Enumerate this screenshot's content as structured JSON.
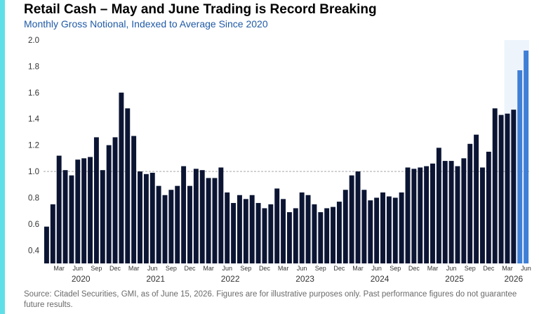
{
  "title": "Retail Cash – May and June Trading is Record Breaking",
  "subtitle": "Monthly Gross Notional, Indexed to Average Since 2020",
  "footnote": "Source: Citadel Securities, GMI, as of June 15, 2026. Figures are for illustrative purposes only. Past performance figures do not guarantee future results.",
  "colors": {
    "accent": "#5fe0e8",
    "subtitle": "#1f5aa6",
    "bar": "#0b1533",
    "bar_highlight": "#3f7fd6",
    "highlight_band": "#eef4fc",
    "reference_line": "#9a9a9a",
    "axis_text": "#333333"
  },
  "chart_data": {
    "type": "bar",
    "title": "Retail Cash – May and June Trading is Record Breaking",
    "subtitle": "Monthly Gross Notional, Indexed to Average Since 2020",
    "xlabel": "",
    "ylabel": "",
    "ylim": [
      0.3,
      2.0
    ],
    "yticks": [
      "0.4",
      "0.6",
      "0.8",
      "1.0",
      "1.2",
      "1.4",
      "1.6",
      "1.8",
      "2.0"
    ],
    "reference_line": 1.0,
    "grid": false,
    "legend": "none",
    "highlighted_period": [
      "2026-05",
      "2026-06"
    ],
    "month_tick_labels": [
      "Mar",
      "Jun",
      "Sep",
      "Dec"
    ],
    "year_labels": [
      "2020",
      "2021",
      "2022",
      "2023",
      "2024",
      "2025",
      "2026"
    ],
    "start_month": "2020-01",
    "values": [
      0.58,
      0.75,
      1.12,
      1.01,
      0.97,
      1.09,
      1.1,
      1.11,
      1.26,
      1.01,
      1.2,
      1.26,
      1.6,
      1.48,
      1.27,
      1.0,
      0.98,
      0.99,
      0.89,
      0.82,
      0.86,
      0.89,
      1.04,
      0.89,
      1.02,
      1.01,
      0.95,
      0.95,
      1.03,
      0.84,
      0.76,
      0.82,
      0.79,
      0.82,
      0.76,
      0.72,
      0.75,
      0.87,
      0.79,
      0.69,
      0.72,
      0.84,
      0.82,
      0.75,
      0.69,
      0.72,
      0.73,
      0.77,
      0.86,
      0.97,
      1.0,
      0.86,
      0.78,
      0.8,
      0.84,
      0.81,
      0.8,
      0.84,
      1.03,
      1.02,
      1.03,
      1.04,
      1.06,
      1.18,
      1.08,
      1.08,
      1.04,
      1.1,
      1.21,
      1.28,
      1.03,
      1.15,
      1.48,
      1.43,
      1.44,
      1.47,
      1.77,
      1.92
    ]
  }
}
